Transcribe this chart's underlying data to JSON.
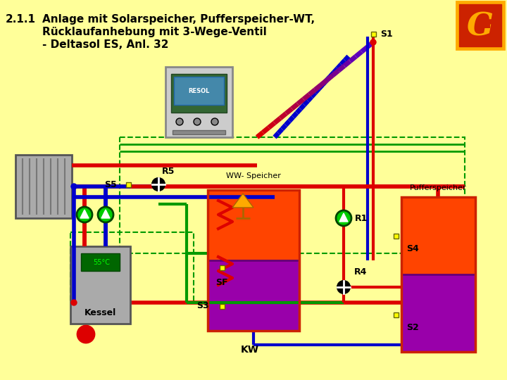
{
  "bg_color": "#FFFF99",
  "title_number": "2.1.1",
  "title_line1": "Anlage mit Solarspeicher, Pufferspeicher-WT,",
  "title_line2": "Rücklaufanhebung mit 3-Wege-Ventil",
  "title_line3": "- Deltasol ES, Anl. 32",
  "logo_bg": "#CC2200",
  "logo_border": "#FFAA00",
  "logo_letter_color": "#FFAA00",
  "red": "#DD0000",
  "blue": "#0000CC",
  "green": "#009900",
  "dark_green": "#006600",
  "purple": "#880088",
  "pink": "#FF00AA",
  "collector_color": "#888888",
  "kessel_color": "#888888",
  "ww_speicher_upper": "#FF4400",
  "ww_speicher_lower": "#AA00AA",
  "puffer_upper": "#FF4400",
  "puffer_lower": "#AA00AA"
}
